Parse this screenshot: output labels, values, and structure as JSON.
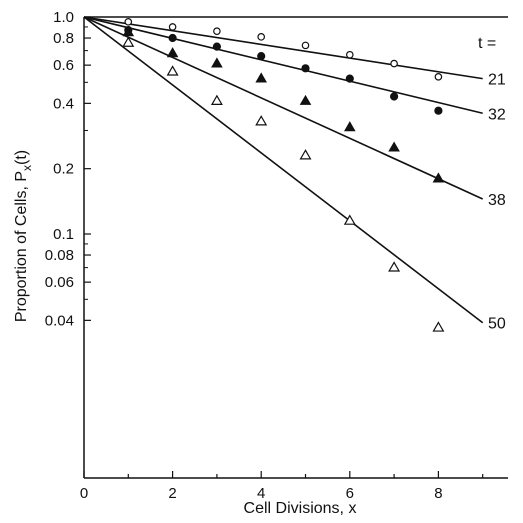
{
  "chart_data": {
    "type": "scatter",
    "title": "",
    "xlabel": "Cell Divisions, x",
    "ylabel": "Proportion of Cells, Px(t)",
    "ylabel_main": "Proportion of Cells, P",
    "ylabel_sub": "x",
    "ylabel_tail": "(t)",
    "y_scale": "log",
    "xlim": [
      0,
      9.3
    ],
    "ylim": [
      0.033,
      1.0
    ],
    "x_ticks": [
      0,
      2,
      4,
      6,
      8
    ],
    "x_tick_labels": [
      "0",
      "2",
      "4",
      "6",
      "8"
    ],
    "y_ticks": [
      1.0,
      0.8,
      0.6,
      0.4,
      0.2,
      0.1,
      0.08,
      0.06,
      0.04
    ],
    "y_tick_labels": [
      "1.0",
      "0.8",
      "0.6",
      "0.4",
      "0.2",
      "0.1",
      "0.08",
      "0.06",
      "0.04"
    ],
    "legend_title": "t =",
    "legend_placement": "right edge, labels at line ends",
    "grid": false,
    "series": [
      {
        "name": "21",
        "marker": "open-circle",
        "points": [
          [
            1,
            0.95
          ],
          [
            2,
            0.9
          ],
          [
            3,
            0.86
          ],
          [
            4,
            0.81
          ],
          [
            5,
            0.74
          ],
          [
            6,
            0.67
          ],
          [
            7,
            0.61
          ],
          [
            8,
            0.53
          ]
        ],
        "fit_line": [
          [
            0,
            1.0
          ],
          [
            9,
            0.52
          ]
        ]
      },
      {
        "name": "32",
        "marker": "filled-circle",
        "points": [
          [
            1,
            0.87
          ],
          [
            2,
            0.8
          ],
          [
            3,
            0.73
          ],
          [
            4,
            0.66
          ],
          [
            5,
            0.58
          ],
          [
            6,
            0.52
          ],
          [
            7,
            0.43
          ],
          [
            8,
            0.37
          ]
        ],
        "fit_line": [
          [
            0,
            1.0
          ],
          [
            9,
            0.36
          ]
        ]
      },
      {
        "name": "38",
        "marker": "filled-triangle",
        "points": [
          [
            1,
            0.85
          ],
          [
            2,
            0.68
          ],
          [
            3,
            0.61
          ],
          [
            4,
            0.52
          ],
          [
            5,
            0.41
          ],
          [
            6,
            0.31
          ],
          [
            7,
            0.25
          ],
          [
            8,
            0.18
          ]
        ],
        "fit_line": [
          [
            0,
            1.0
          ],
          [
            9,
            0.145
          ]
        ]
      },
      {
        "name": "50",
        "marker": "open-triangle",
        "points": [
          [
            1,
            0.76
          ],
          [
            2,
            0.56
          ],
          [
            3,
            0.41
          ],
          [
            4,
            0.33
          ],
          [
            5,
            0.23
          ],
          [
            6,
            0.115
          ],
          [
            7,
            0.07
          ],
          [
            8,
            0.037
          ]
        ],
        "fit_line": [
          [
            0,
            1.0
          ],
          [
            9,
            0.039
          ]
        ]
      }
    ],
    "colors": {
      "ink": "#111111",
      "background": "#ffffff"
    }
  }
}
